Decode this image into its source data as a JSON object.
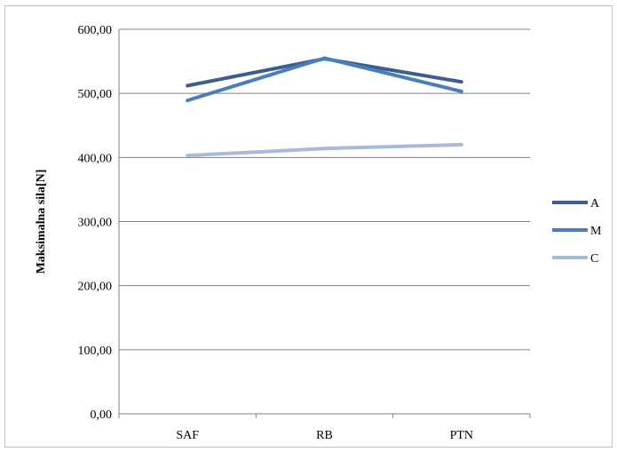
{
  "chart_data": {
    "type": "line",
    "categories": [
      "SAF",
      "RB",
      "PTN"
    ],
    "series": [
      {
        "name": "A",
        "values": [
          512,
          554,
          518
        ],
        "color": "#3a5f8f"
      },
      {
        "name": "M",
        "values": [
          489,
          555,
          503
        ],
        "color": "#4a7ebb"
      },
      {
        "name": "C",
        "values": [
          403,
          414,
          420
        ],
        "color": "#a7bbd9"
      }
    ],
    "ylabel": "Maksimalna sila[N]",
    "xlabel": "",
    "ylim": [
      0,
      600
    ],
    "yticks": [
      "0,00",
      "100,00",
      "200,00",
      "300,00",
      "400,00",
      "500,00",
      "600,00"
    ],
    "grid": true,
    "legend": "right"
  }
}
